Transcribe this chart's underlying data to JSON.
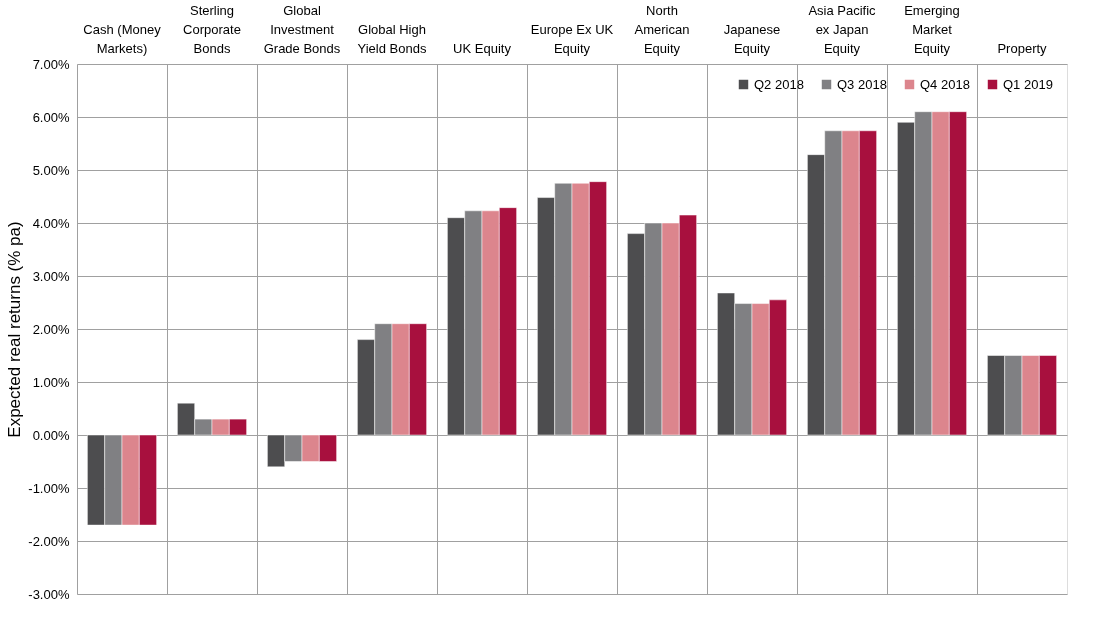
{
  "chart_data": {
    "type": "bar",
    "categories": [
      "Cash (Money Markets)",
      "Sterling Corporate Bonds",
      "Global Investment Grade Bonds",
      "Global High Yield Bonds",
      "UK Equity",
      "Europe Ex UK Equity",
      "North American Equity",
      "Japanese Equity",
      "Asia Pacific ex Japan Equity",
      "Emerging Market Equity",
      "Property"
    ],
    "ylabel": "Expected real returns (% pa)",
    "series": [
      {
        "name": "Q2 2018",
        "color": "#4d4d4f",
        "values": [
          -1.7,
          0.6,
          -0.6,
          1.8,
          4.1,
          4.48,
          3.8,
          2.68,
          5.29,
          5.9,
          1.5
        ]
      },
      {
        "name": "Q3 2018",
        "color": "#808083",
        "values": [
          -1.7,
          0.3,
          -0.5,
          2.1,
          4.23,
          4.75,
          4.0,
          2.48,
          5.74,
          6.1,
          1.5
        ]
      },
      {
        "name": "Q4 2018",
        "color": "#dc858d",
        "values": [
          -1.7,
          0.3,
          -0.5,
          2.1,
          4.23,
          4.75,
          4.0,
          2.48,
          5.74,
          6.1,
          1.5
        ]
      },
      {
        "name": "Q1 2019",
        "color": "#a8103e",
        "values": [
          -1.7,
          0.3,
          -0.5,
          2.1,
          4.29,
          4.78,
          4.15,
          2.55,
          5.74,
          6.1,
          1.5
        ]
      }
    ],
    "ylim": [
      -3,
      7
    ],
    "yticks": [
      {
        "value": -3,
        "label": "-3.00%"
      },
      {
        "value": -2,
        "label": "-2.00%"
      },
      {
        "value": -1,
        "label": "-1.00%"
      },
      {
        "value": 0,
        "label": "0.00%"
      },
      {
        "value": 1,
        "label": "1.00%"
      },
      {
        "value": 2,
        "label": "2.00%"
      },
      {
        "value": 3,
        "label": "3.00%"
      },
      {
        "value": 4,
        "label": "4.00%"
      },
      {
        "value": 5,
        "label": "5.00%"
      },
      {
        "value": 6,
        "label": "6.00%"
      },
      {
        "value": 7,
        "label": "7.00%"
      }
    ],
    "grid": true,
    "legend": "top right"
  }
}
